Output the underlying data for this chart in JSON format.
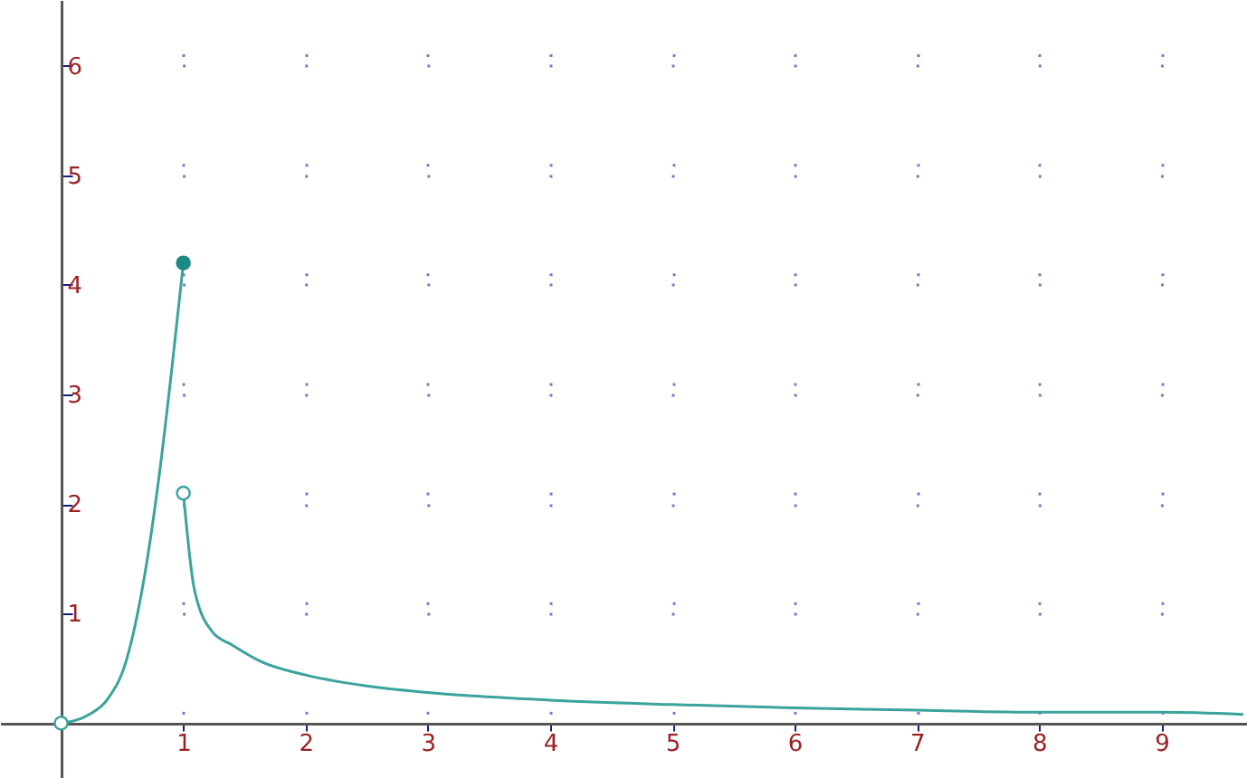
{
  "chart_data": {
    "type": "line",
    "xlim": [
      -0.5,
      9.7
    ],
    "ylim": [
      -0.5,
      6.6
    ],
    "xticks": [
      1,
      2,
      3,
      4,
      5,
      6,
      7,
      8,
      9
    ],
    "yticks": [
      1,
      2,
      3,
      4,
      5,
      6
    ],
    "grid": true,
    "marker": "circle",
    "series": [
      {
        "marker": "none",
        "color": "#3aa39c",
        "x": [
          0,
          0.23,
          0.38,
          0.53,
          0.68,
          0.81,
          0.91,
          1
        ],
        "values": [
          0,
          0.08,
          0.22,
          0.56,
          1.33,
          2.33,
          3.28,
          4.2
        ]
      },
      {
        "marker": "none",
        "color": "#3aa39c",
        "x": [
          1,
          1.09,
          1.24,
          1.39,
          1.64,
          2,
          2.5,
          3,
          4,
          5,
          6,
          7,
          8,
          9,
          9.67
        ],
        "values": [
          2.1,
          1.22,
          0.83,
          0.72,
          0.56,
          0.44,
          0.34,
          0.28,
          0.21,
          0.17,
          0.14,
          0.12,
          0.1,
          0.1,
          0.08
        ]
      },
      {
        "type": "scatter",
        "color": "#1f8a84",
        "x": [
          1
        ],
        "values": [
          4.2
        ]
      },
      {
        "type": "scatter",
        "color": "#ffffff",
        "x": [
          0,
          1
        ],
        "values": [
          0,
          2.1
        ]
      }
    ]
  }
}
